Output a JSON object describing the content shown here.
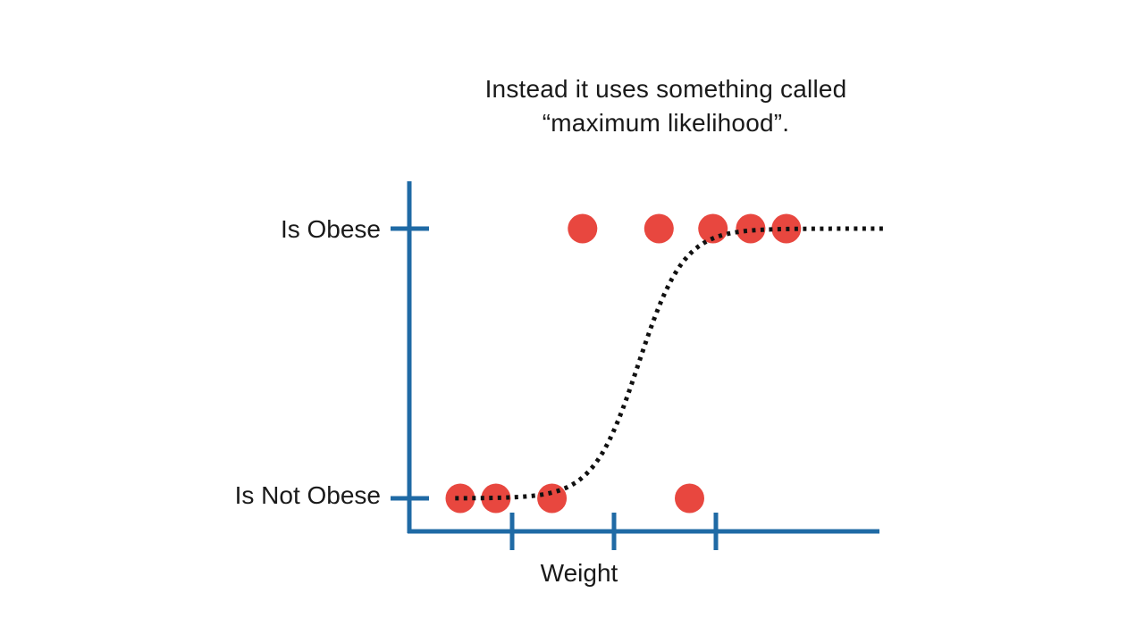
{
  "caption": {
    "line1": "Instead it uses something called",
    "line2": "“maximum likelihood”."
  },
  "colors": {
    "axis": "#1f6aa5",
    "point": "#e8473f",
    "curve": "#111111"
  },
  "chart_data": {
    "type": "scatter",
    "title": "",
    "xlabel": "Weight",
    "ylabel": "",
    "y_categories": [
      "Is Not Obese",
      "Is Obese"
    ],
    "xlim": [
      0,
      4.65
    ],
    "x_ticks": [
      1,
      2,
      3
    ],
    "x_tick_labels_shown": false,
    "grid": false,
    "legend": "none",
    "points": [
      {
        "x": 0.5,
        "y": 0
      },
      {
        "x": 0.85,
        "y": 0
      },
      {
        "x": 1.4,
        "y": 0
      },
      {
        "x": 2.75,
        "y": 0
      },
      {
        "x": 1.7,
        "y": 1
      },
      {
        "x": 2.45,
        "y": 1
      },
      {
        "x": 2.98,
        "y": 1
      },
      {
        "x": 3.35,
        "y": 1
      },
      {
        "x": 3.7,
        "y": 1
      }
    ],
    "curve": {
      "type": "logistic",
      "style": "dotted",
      "x_range": [
        0.45,
        4.65
      ],
      "midpoint": 2.25,
      "steepness": 4.5
    }
  }
}
